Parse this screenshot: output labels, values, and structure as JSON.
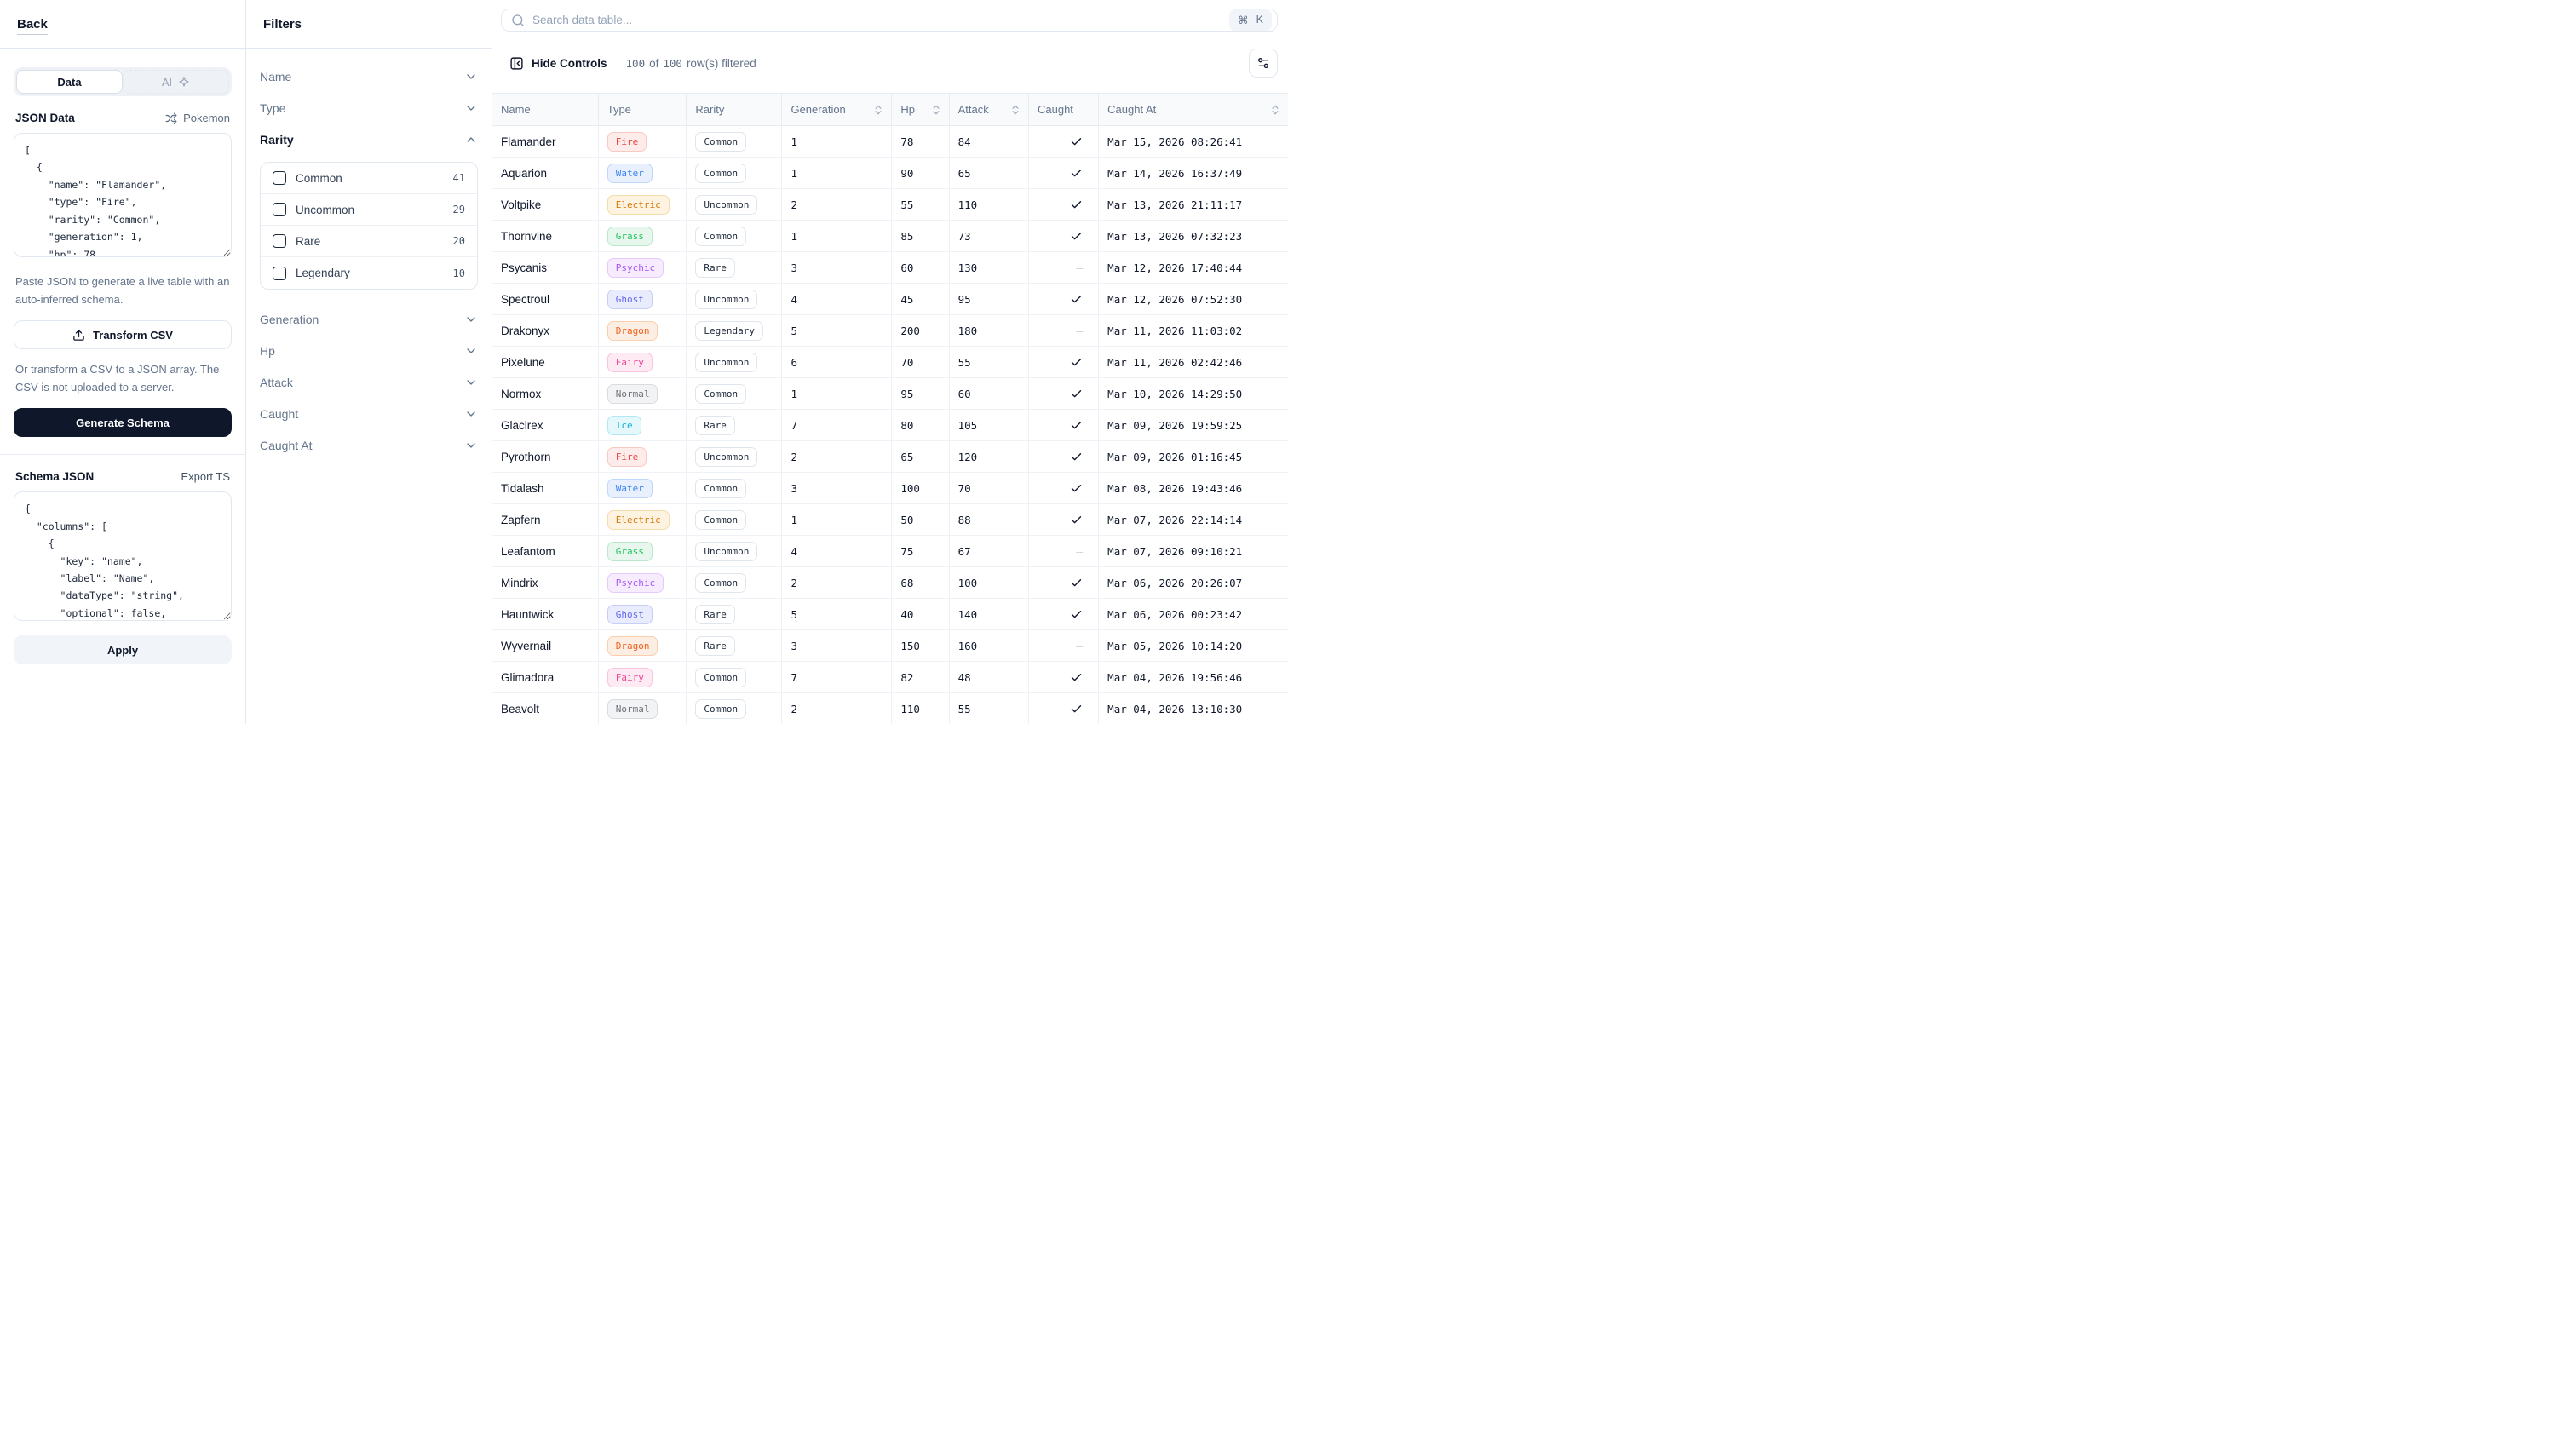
{
  "sidebar": {
    "back_label": "Back",
    "tabs": {
      "data_label": "Data",
      "ai_label": "AI"
    },
    "json_data": {
      "label": "JSON Data",
      "dataset_button_label": "Pokemon",
      "value": "[\n  {\n    \"name\": \"Flamander\",\n    \"type\": \"Fire\",\n    \"rarity\": \"Common\",\n    \"generation\": 1,\n    \"hp\": 78,",
      "caption": "Paste JSON to generate a live table with an auto-inferred schema."
    },
    "transform_csv_label": "Transform CSV",
    "csv_caption": "Or transform a CSV to a JSON array. The CSV is not uploaded to a server.",
    "generate_schema_label": "Generate Schema",
    "schema": {
      "label": "Schema JSON",
      "export_ts_label": "Export TS",
      "value": "{\n  \"columns\": [\n    {\n      \"key\": \"name\",\n      \"label\": \"Name\",\n      \"dataType\": \"string\",\n      \"optional\": false,",
      "apply_label": "Apply"
    }
  },
  "filters": {
    "title": "Filters",
    "items": [
      {
        "label": "Name",
        "expanded": false
      },
      {
        "label": "Type",
        "expanded": false
      },
      {
        "label": "Rarity",
        "expanded": true,
        "options": [
          {
            "label": "Common",
            "count": "41"
          },
          {
            "label": "Uncommon",
            "count": "29"
          },
          {
            "label": "Rare",
            "count": "20"
          },
          {
            "label": "Legendary",
            "count": "10"
          }
        ]
      },
      {
        "label": "Generation",
        "expanded": false
      },
      {
        "label": "Hp",
        "expanded": false
      },
      {
        "label": "Attack",
        "expanded": false
      },
      {
        "label": "Caught",
        "expanded": false
      },
      {
        "label": "Caught At",
        "expanded": false
      }
    ]
  },
  "main": {
    "search": {
      "placeholder": "Search data table...",
      "shortcut_mod": "⌘",
      "shortcut_key": "K"
    },
    "toolbar": {
      "hide_controls_label": "Hide Controls",
      "filtered_count": "100",
      "of_label": "of",
      "total_count": "100",
      "rows_suffix": "row(s) filtered"
    },
    "table": {
      "caught_false_glyph": "–",
      "columns": [
        {
          "label": "Name",
          "sortable": false
        },
        {
          "label": "Type",
          "sortable": false
        },
        {
          "label": "Rarity",
          "sortable": false
        },
        {
          "label": "Generation",
          "sortable": true
        },
        {
          "label": "Hp",
          "sortable": true
        },
        {
          "label": "Attack",
          "sortable": true
        },
        {
          "label": "Caught",
          "sortable": false
        },
        {
          "label": "Caught At",
          "sortable": true
        }
      ],
      "rows": [
        {
          "name": "Flamander",
          "type": "Fire",
          "rarity": "Common",
          "generation": "1",
          "hp": "78",
          "attack": "84",
          "caught": true,
          "caught_at": "Mar 15, 2026 08:26:41"
        },
        {
          "name": "Aquarion",
          "type": "Water",
          "rarity": "Common",
          "generation": "1",
          "hp": "90",
          "attack": "65",
          "caught": true,
          "caught_at": "Mar 14, 2026 16:37:49"
        },
        {
          "name": "Voltpike",
          "type": "Electric",
          "rarity": "Uncommon",
          "generation": "2",
          "hp": "55",
          "attack": "110",
          "caught": true,
          "caught_at": "Mar 13, 2026 21:11:17"
        },
        {
          "name": "Thornvine",
          "type": "Grass",
          "rarity": "Common",
          "generation": "1",
          "hp": "85",
          "attack": "73",
          "caught": true,
          "caught_at": "Mar 13, 2026 07:32:23"
        },
        {
          "name": "Psycanis",
          "type": "Psychic",
          "rarity": "Rare",
          "generation": "3",
          "hp": "60",
          "attack": "130",
          "caught": false,
          "caught_at": "Mar 12, 2026 17:40:44"
        },
        {
          "name": "Spectroul",
          "type": "Ghost",
          "rarity": "Uncommon",
          "generation": "4",
          "hp": "45",
          "attack": "95",
          "caught": true,
          "caught_at": "Mar 12, 2026 07:52:30"
        },
        {
          "name": "Drakonyx",
          "type": "Dragon",
          "rarity": "Legendary",
          "generation": "5",
          "hp": "200",
          "attack": "180",
          "caught": false,
          "caught_at": "Mar 11, 2026 11:03:02"
        },
        {
          "name": "Pixelune",
          "type": "Fairy",
          "rarity": "Uncommon",
          "generation": "6",
          "hp": "70",
          "attack": "55",
          "caught": true,
          "caught_at": "Mar 11, 2026 02:42:46"
        },
        {
          "name": "Normox",
          "type": "Normal",
          "rarity": "Common",
          "generation": "1",
          "hp": "95",
          "attack": "60",
          "caught": true,
          "caught_at": "Mar 10, 2026 14:29:50"
        },
        {
          "name": "Glacirex",
          "type": "Ice",
          "rarity": "Rare",
          "generation": "7",
          "hp": "80",
          "attack": "105",
          "caught": true,
          "caught_at": "Mar 09, 2026 19:59:25"
        },
        {
          "name": "Pyrothorn",
          "type": "Fire",
          "rarity": "Uncommon",
          "generation": "2",
          "hp": "65",
          "attack": "120",
          "caught": true,
          "caught_at": "Mar 09, 2026 01:16:45"
        },
        {
          "name": "Tidalash",
          "type": "Water",
          "rarity": "Common",
          "generation": "3",
          "hp": "100",
          "attack": "70",
          "caught": true,
          "caught_at": "Mar 08, 2026 19:43:46"
        },
        {
          "name": "Zapfern",
          "type": "Electric",
          "rarity": "Common",
          "generation": "1",
          "hp": "50",
          "attack": "88",
          "caught": true,
          "caught_at": "Mar 07, 2026 22:14:14"
        },
        {
          "name": "Leafantom",
          "type": "Grass",
          "rarity": "Uncommon",
          "generation": "4",
          "hp": "75",
          "attack": "67",
          "caught": false,
          "caught_at": "Mar 07, 2026 09:10:21"
        },
        {
          "name": "Mindrix",
          "type": "Psychic",
          "rarity": "Common",
          "generation": "2",
          "hp": "68",
          "attack": "100",
          "caught": true,
          "caught_at": "Mar 06, 2026 20:26:07"
        },
        {
          "name": "Hauntwick",
          "type": "Ghost",
          "rarity": "Rare",
          "generation": "5",
          "hp": "40",
          "attack": "140",
          "caught": true,
          "caught_at": "Mar 06, 2026 00:23:42"
        },
        {
          "name": "Wyvernail",
          "type": "Dragon",
          "rarity": "Rare",
          "generation": "3",
          "hp": "150",
          "attack": "160",
          "caught": false,
          "caught_at": "Mar 05, 2026 10:14:20"
        },
        {
          "name": "Glimadora",
          "type": "Fairy",
          "rarity": "Common",
          "generation": "7",
          "hp": "82",
          "attack": "48",
          "caught": true,
          "caught_at": "Mar 04, 2026 19:56:46"
        },
        {
          "name": "Beavolt",
          "type": "Normal",
          "rarity": "Common",
          "generation": "2",
          "hp": "110",
          "attack": "55",
          "caught": true,
          "caught_at": "Mar 04, 2026 13:10:30"
        }
      ]
    }
  },
  "type_colors": {
    "Fire": {
      "text": "#ef4444",
      "bg": "#fdecea",
      "border": "#f8c9c4"
    },
    "Water": {
      "text": "#3b82f6",
      "bg": "#e8f0fd",
      "border": "#bfd7fa"
    },
    "Electric": {
      "text": "#d97706",
      "bg": "#fdf3e0",
      "border": "#f3deab"
    },
    "Grass": {
      "text": "#22c55e",
      "bg": "#e7f7ed",
      "border": "#b9e9ca"
    },
    "Psychic": {
      "text": "#a855f7",
      "bg": "#f6ecfe",
      "border": "#e5cafb"
    },
    "Ghost": {
      "text": "#6366f1",
      "bg": "#e9ecfd",
      "border": "#c8cefa"
    },
    "Dragon": {
      "text": "#f2601d",
      "bg": "#fdeee3",
      "border": "#f9cfae"
    },
    "Fairy": {
      "text": "#ec4899",
      "bg": "#fdeaf3",
      "border": "#f9c4de"
    },
    "Normal": {
      "text": "#71717a",
      "bg": "#f2f3f4",
      "border": "#d9dbdf"
    },
    "Ice": {
      "text": "#0bb2d4",
      "bg": "#e4f7fb",
      "border": "#b0e7f3"
    }
  }
}
